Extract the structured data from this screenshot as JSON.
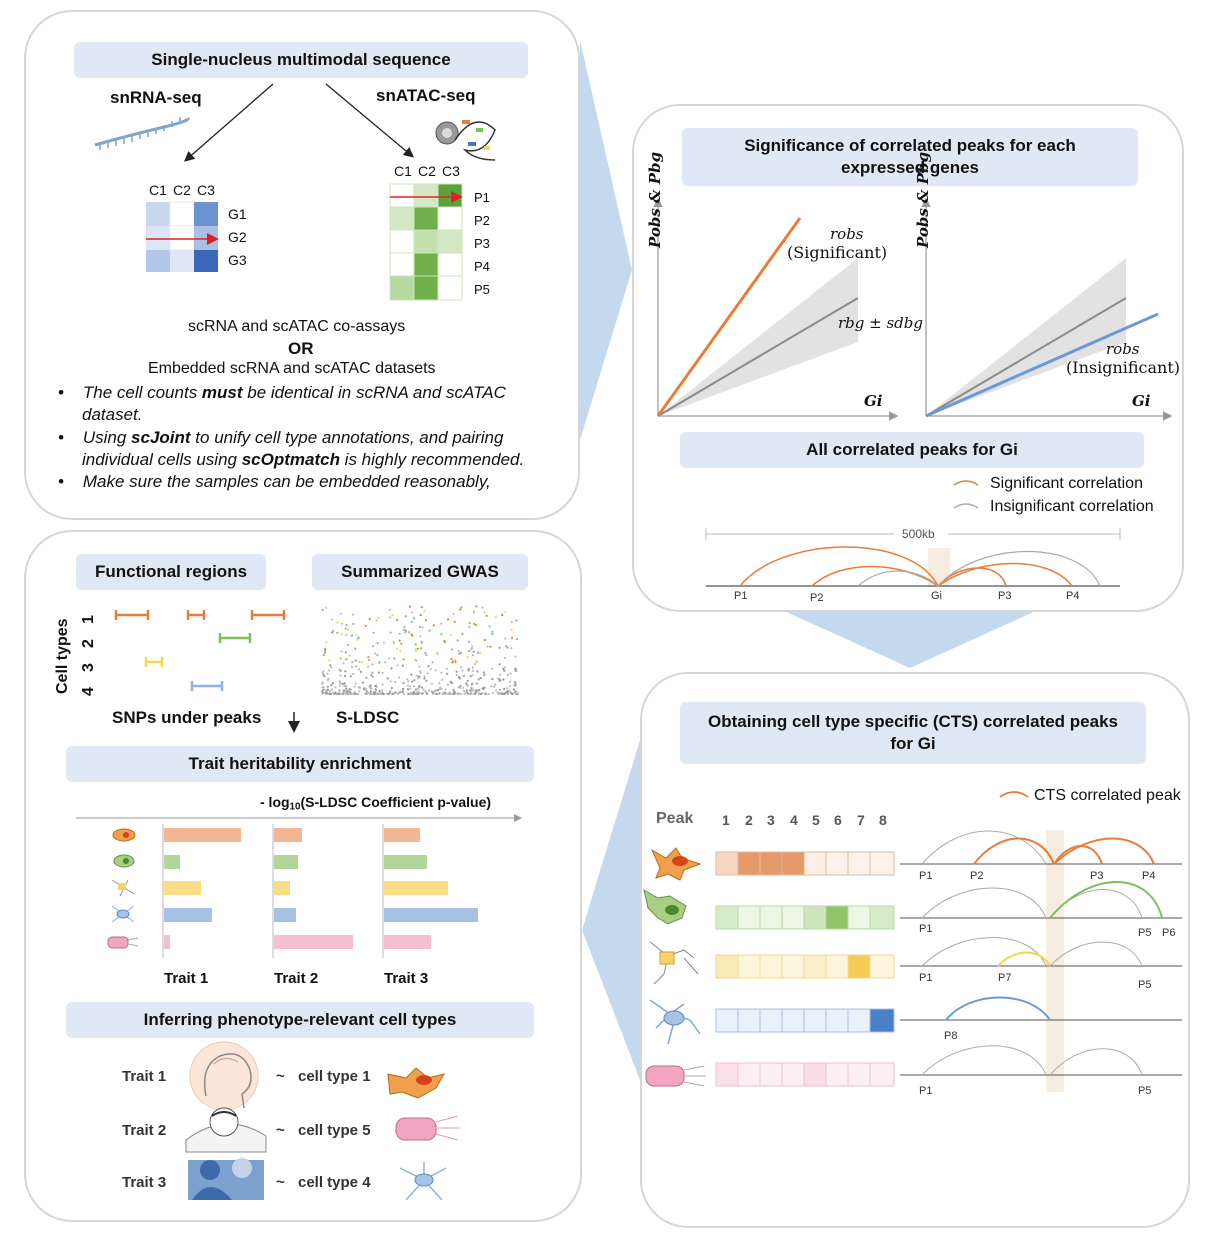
{
  "panel_a": {
    "title": "Single-nucleus multimodal sequence",
    "rna_label": "snRNA-seq",
    "atac_label": "snATAC-seq",
    "rna_cols": [
      "C1",
      "C2",
      "C3"
    ],
    "rna_rows": [
      "G1",
      "G2",
      "G3"
    ],
    "atac_cols": [
      "C1",
      "C2",
      "C3"
    ],
    "atac_rows": [
      "P1",
      "P2",
      "P3",
      "P4",
      "P5"
    ],
    "line1": "scRNA and scATAC co-assays",
    "line2": "OR",
    "line3": "Embedded scRNA and scATAC datasets",
    "bullets": [
      {
        "pre": "The cell counts ",
        "strong": "must",
        "post": " be identical in scRNA and scATAC",
        "cont": "dataset."
      },
      {
        "pre": "Using ",
        "strong": "scJoint",
        "post": " to unify cell type annotations, and pairing",
        "cont_pre": "individual cells using ",
        "cont_strong": "scOptmatch",
        "cont_post": " is highly recommended."
      },
      {
        "pre": "Make sure the samples can be embedded reasonably,"
      }
    ]
  },
  "panel_b": {
    "title": "Significance of correlated peaks for each expressed genes",
    "y_label": "Pobs & Pbg",
    "x_label": "Gi",
    "robs": "robs",
    "significant": "(Significant)",
    "insignificant": "(Insignificant)",
    "rbg": "rbg ± sdbg",
    "title2": "All correlated peaks for Gi",
    "legend_sig": "Significant correlation",
    "legend_insig": "Insignificant correlation",
    "window": "500kb",
    "loci": [
      "P1",
      "P2",
      "Gi",
      "P3",
      "P4"
    ]
  },
  "panel_c": {
    "title": "Obtaining cell type specific (CTS) correlated peaks for Gi",
    "legend": "CTS correlated peak",
    "peak_label": "Peak",
    "peak_numbers": [
      "1",
      "2",
      "3",
      "4",
      "5",
      "6",
      "7",
      "8"
    ],
    "row_loci": [
      [
        "P1",
        "P2",
        "P3",
        "P4"
      ],
      [
        "P1",
        "P5",
        "P6"
      ],
      [
        "P1",
        "P7",
        "P5"
      ],
      [
        "P8"
      ],
      [
        "P1",
        "P5"
      ]
    ]
  },
  "panel_d": {
    "title_functional": "Functional regions",
    "title_gwas": "Summarized GWAS",
    "cell_types_label": "Cell types",
    "cell_type_numbers": [
      "1",
      "2",
      "3",
      "4"
    ],
    "snps_label": "SNPs under peaks",
    "sldsc_label": "S-LDSC",
    "title_enrich": "Trait heritability enrichment",
    "axis_label": "- log10(S-LDSC Coefficient p-value)",
    "traits": [
      "Trait 1",
      "Trait 2",
      "Trait 3"
    ],
    "title_infer": "Inferring phenotype-relevant cell types",
    "pairs": [
      {
        "trait": "Trait 1",
        "tilde": "~",
        "cell": "cell type 1"
      },
      {
        "trait": "Trait 2",
        "tilde": "~",
        "cell": "cell type 5"
      },
      {
        "trait": "Trait 3",
        "tilde": "~",
        "cell": "cell type 4"
      }
    ]
  },
  "colors": {
    "orange": "#e67e3a",
    "green": "#7fbf5a",
    "yellow": "#f5d46a",
    "blue": "#8fb2de",
    "pink": "#f2b5c8",
    "header_bg": "#dfe8f5",
    "connector": "#c5d9ee"
  }
}
